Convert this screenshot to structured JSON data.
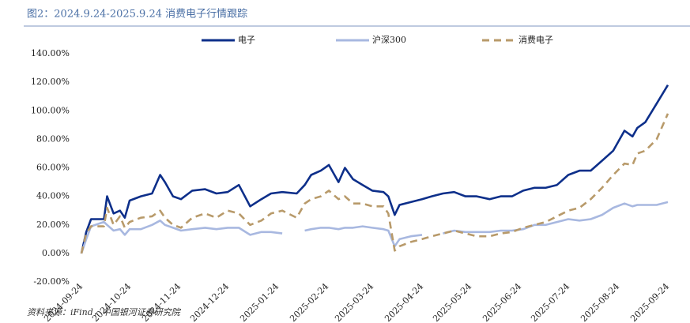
{
  "chart_data": {
    "type": "line",
    "title": "图2：2024.9.24-2025.9.24 消费电子行情跟踪",
    "source": "资料来源：iFind，中国银河证券研究院",
    "legend": "top",
    "grid": false,
    "x": [
      "2024-09-24",
      "2024-09-27",
      "2024-09-30",
      "2024-10-08",
      "2024-10-10",
      "2024-10-14",
      "2024-10-18",
      "2024-10-21",
      "2024-10-24",
      "2024-10-31",
      "2024-11-07",
      "2024-11-12",
      "2024-11-15",
      "2024-11-20",
      "2024-11-25",
      "2024-12-02",
      "2024-12-10",
      "2024-12-17",
      "2024-12-24",
      "2024-12-31",
      "2025-01-07",
      "2025-01-14",
      "2025-01-20",
      "2025-01-27",
      "2025-02-05",
      "2025-02-10",
      "2025-02-14",
      "2025-02-20",
      "2025-02-25",
      "2025-03-03",
      "2025-03-07",
      "2025-03-12",
      "2025-03-18",
      "2025-03-24",
      "2025-03-31",
      "2025-04-03",
      "2025-04-07",
      "2025-04-10",
      "2025-04-17",
      "2025-04-24",
      "2025-04-30",
      "2025-05-07",
      "2025-05-14",
      "2025-05-21",
      "2025-05-28",
      "2025-06-05",
      "2025-06-12",
      "2025-06-19",
      "2025-06-26",
      "2025-07-03",
      "2025-07-10",
      "2025-07-17",
      "2025-07-24",
      "2025-07-31",
      "2025-08-07",
      "2025-08-14",
      "2025-08-21",
      "2025-08-28",
      "2025-09-02",
      "2025-09-05",
      "2025-09-10",
      "2025-09-17",
      "2025-09-24"
    ],
    "xlim": [
      "2024-09-24",
      "2025-09-24"
    ],
    "xticks": [
      "2024-09-24",
      "2024-10-24",
      "2024-11-24",
      "2024-12-24",
      "2025-01-24",
      "2025-02-24",
      "2025-03-24",
      "2025-04-24",
      "2025-05-24",
      "2025-06-24",
      "2025-07-24",
      "2025-08-24",
      "2025-09-24"
    ],
    "ylim": [
      -20,
      140
    ],
    "yticks": [
      {
        "value": -20,
        "label": "-20.00%"
      },
      {
        "value": 0,
        "label": "0.00%"
      },
      {
        "value": 20,
        "label": "20.00%"
      },
      {
        "value": 40,
        "label": "40.00%"
      },
      {
        "value": 60,
        "label": "60.00%"
      },
      {
        "value": 80,
        "label": "80.00%"
      },
      {
        "value": 100,
        "label": "100.00%"
      },
      {
        "value": 120,
        "label": "120.00%"
      },
      {
        "value": 140,
        "label": "140.00%"
      }
    ],
    "series": [
      {
        "name": "电子",
        "color": "#0d2f8a",
        "dashed": false,
        "values": [
          0,
          15,
          24,
          24,
          40,
          28,
          30,
          25,
          37,
          40,
          42,
          55,
          50,
          40,
          38,
          44,
          45,
          42,
          43,
          48,
          33,
          38,
          42,
          43,
          42,
          48,
          55,
          58,
          62,
          50,
          60,
          52,
          48,
          44,
          43,
          40,
          27,
          34,
          36,
          38,
          40,
          42,
          43,
          40,
          40,
          38,
          40,
          40,
          44,
          46,
          46,
          48,
          55,
          58,
          58,
          65,
          72,
          86,
          82,
          88,
          92,
          105,
          118
        ]
      },
      {
        "name": "沪深300",
        "color": "#a8b8e0",
        "dashed": false,
        "values": [
          0,
          10,
          19,
          22,
          20,
          16,
          17,
          13,
          17,
          17,
          20,
          23,
          20,
          18,
          16,
          17,
          18,
          17,
          18,
          18,
          13,
          15,
          15,
          14,
          null,
          16,
          17,
          18,
          18,
          17,
          18,
          18,
          19,
          18,
          17,
          16,
          5,
          10,
          12,
          13,
          null,
          14,
          16,
          15,
          15,
          15,
          16,
          16,
          17,
          20,
          20,
          22,
          24,
          23,
          24,
          27,
          32,
          35,
          33,
          34,
          34,
          34,
          36
        ]
      },
      {
        "name": "消费电子",
        "color": "#b89a6a",
        "dashed": true,
        "values": [
          0,
          14,
          19,
          19,
          32,
          20,
          26,
          18,
          22,
          25,
          26,
          30,
          25,
          20,
          18,
          25,
          28,
          25,
          30,
          28,
          20,
          23,
          28,
          30,
          25,
          35,
          38,
          40,
          44,
          38,
          40,
          35,
          35,
          33,
          33,
          28,
          2,
          5,
          8,
          10,
          12,
          14,
          16,
          14,
          12,
          12,
          14,
          15,
          18,
          20,
          22,
          26,
          30,
          32,
          38,
          46,
          55,
          63,
          62,
          70,
          72,
          80,
          98
        ]
      }
    ]
  }
}
